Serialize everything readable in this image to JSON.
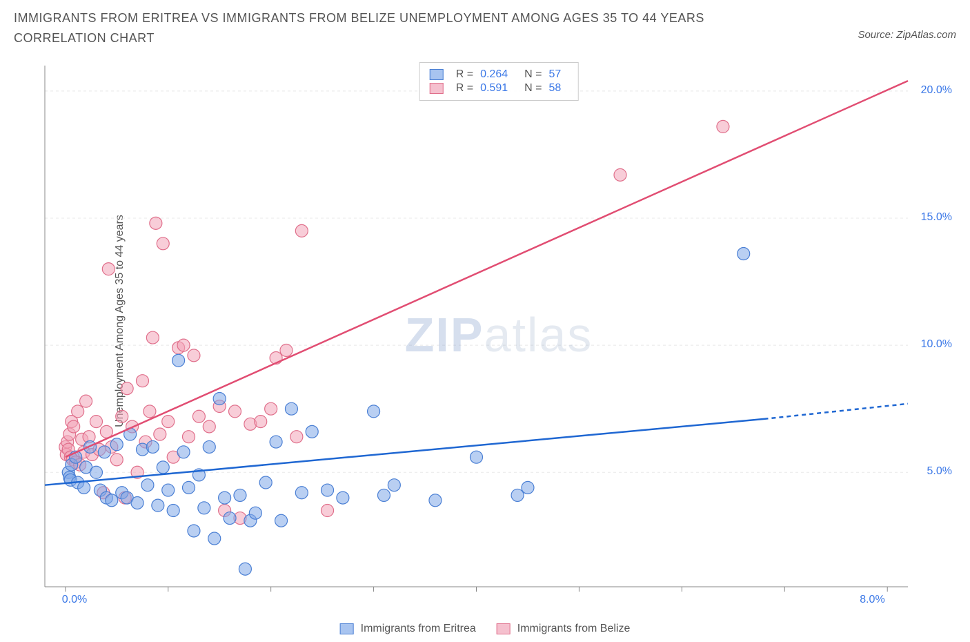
{
  "meta": {
    "title": "IMMIGRANTS FROM ERITREA VS IMMIGRANTS FROM BELIZE UNEMPLOYMENT AMONG AGES 35 TO 44 YEARS CORRELATION CHART",
    "source": "Source: ZipAtlas.com",
    "watermark_zip": "ZIP",
    "watermark_atlas": "atlas",
    "y_axis_label": "Unemployment Among Ages 35 to 44 years"
  },
  "chart": {
    "type": "scatter",
    "background_color": "#ffffff",
    "grid_color": "#e8e8e8",
    "axis_color": "#888888",
    "tick_color": "#888888",
    "tick_label_color": "#3b78e7",
    "xlim": [
      -0.2,
      8.2
    ],
    "ylim": [
      0.5,
      21.0
    ],
    "xticks": [
      0.0,
      8.0
    ],
    "xtick_labels": [
      "0.0%",
      "8.0%"
    ],
    "xtick_minor": [
      1.0,
      2.0,
      3.0,
      4.0,
      5.0,
      6.0,
      7.0
    ],
    "yticks": [
      5.0,
      10.0,
      15.0,
      20.0
    ],
    "ytick_labels": [
      "5.0%",
      "10.0%",
      "15.0%",
      "20.0%"
    ],
    "marker_radius": 9,
    "marker_opacity": 0.55,
    "series": [
      {
        "name": "Immigrants from Eritrea",
        "short": "eritrea",
        "marker_fill": "#7fa8e8",
        "marker_stroke": "#4a7fd4",
        "line_color": "#1f67d2",
        "line_width": 2.5,
        "trend_x": [
          -0.2,
          6.8,
          8.2
        ],
        "trend_y": [
          4.5,
          7.1,
          7.7
        ],
        "trend_dash_after": 6.8,
        "stats": {
          "R": "0.264",
          "N": "57"
        },
        "points": [
          [
            0.03,
            5.0
          ],
          [
            0.04,
            4.8
          ],
          [
            0.05,
            4.7
          ],
          [
            0.06,
            5.3
          ],
          [
            0.1,
            5.6
          ],
          [
            0.12,
            4.6
          ],
          [
            0.18,
            4.4
          ],
          [
            0.2,
            5.2
          ],
          [
            0.24,
            6.0
          ],
          [
            0.3,
            5.0
          ],
          [
            0.34,
            4.3
          ],
          [
            0.38,
            5.8
          ],
          [
            0.4,
            4.0
          ],
          [
            0.45,
            3.9
          ],
          [
            0.5,
            6.1
          ],
          [
            0.55,
            4.2
          ],
          [
            0.6,
            4.0
          ],
          [
            0.63,
            6.5
          ],
          [
            0.7,
            3.8
          ],
          [
            0.75,
            5.9
          ],
          [
            0.8,
            4.5
          ],
          [
            0.85,
            6.0
          ],
          [
            0.9,
            3.7
          ],
          [
            0.95,
            5.2
          ],
          [
            1.0,
            4.3
          ],
          [
            1.05,
            3.5
          ],
          [
            1.1,
            9.4
          ],
          [
            1.15,
            5.8
          ],
          [
            1.2,
            4.4
          ],
          [
            1.25,
            2.7
          ],
          [
            1.3,
            4.9
          ],
          [
            1.35,
            3.6
          ],
          [
            1.4,
            6.0
          ],
          [
            1.45,
            2.4
          ],
          [
            1.5,
            7.9
          ],
          [
            1.55,
            4.0
          ],
          [
            1.6,
            3.2
          ],
          [
            1.7,
            4.1
          ],
          [
            1.75,
            1.2
          ],
          [
            1.8,
            3.1
          ],
          [
            1.85,
            3.4
          ],
          [
            1.95,
            4.6
          ],
          [
            2.05,
            6.2
          ],
          [
            2.1,
            3.1
          ],
          [
            2.2,
            7.5
          ],
          [
            2.3,
            4.2
          ],
          [
            2.4,
            6.6
          ],
          [
            2.55,
            4.3
          ],
          [
            2.7,
            4.0
          ],
          [
            3.0,
            7.4
          ],
          [
            3.1,
            4.1
          ],
          [
            3.2,
            4.5
          ],
          [
            3.6,
            3.9
          ],
          [
            4.0,
            5.6
          ],
          [
            4.4,
            4.1
          ],
          [
            4.5,
            4.4
          ],
          [
            6.6,
            13.6
          ]
        ]
      },
      {
        "name": "Immigrants from Belize",
        "short": "belize",
        "marker_fill": "#f2a4b8",
        "marker_stroke": "#e06f8b",
        "line_color": "#e14d72",
        "line_width": 2.5,
        "trend_x": [
          0.0,
          8.2
        ],
        "trend_y": [
          5.6,
          20.4
        ],
        "stats": {
          "R": "0.591",
          "N": "58"
        },
        "points": [
          [
            0.0,
            6.0
          ],
          [
            0.01,
            5.7
          ],
          [
            0.02,
            6.2
          ],
          [
            0.03,
            5.9
          ],
          [
            0.04,
            6.5
          ],
          [
            0.05,
            5.6
          ],
          [
            0.06,
            7.0
          ],
          [
            0.07,
            5.5
          ],
          [
            0.08,
            6.8
          ],
          [
            0.1,
            5.4
          ],
          [
            0.12,
            7.4
          ],
          [
            0.14,
            5.3
          ],
          [
            0.16,
            6.3
          ],
          [
            0.18,
            5.8
          ],
          [
            0.2,
            7.8
          ],
          [
            0.23,
            6.4
          ],
          [
            0.26,
            5.7
          ],
          [
            0.3,
            7.0
          ],
          [
            0.33,
            5.9
          ],
          [
            0.37,
            4.2
          ],
          [
            0.4,
            6.6
          ],
          [
            0.42,
            13.0
          ],
          [
            0.45,
            6.0
          ],
          [
            0.5,
            5.5
          ],
          [
            0.55,
            7.2
          ],
          [
            0.58,
            4.0
          ],
          [
            0.6,
            8.3
          ],
          [
            0.65,
            6.8
          ],
          [
            0.7,
            5.0
          ],
          [
            0.75,
            8.6
          ],
          [
            0.78,
            6.2
          ],
          [
            0.82,
            7.4
          ],
          [
            0.85,
            10.3
          ],
          [
            0.88,
            14.8
          ],
          [
            0.92,
            6.5
          ],
          [
            0.95,
            14.0
          ],
          [
            1.0,
            7.0
          ],
          [
            1.05,
            5.6
          ],
          [
            1.1,
            9.9
          ],
          [
            1.15,
            10.0
          ],
          [
            1.2,
            6.4
          ],
          [
            1.25,
            9.6
          ],
          [
            1.3,
            7.2
          ],
          [
            1.4,
            6.8
          ],
          [
            1.5,
            7.6
          ],
          [
            1.55,
            3.5
          ],
          [
            1.65,
            7.4
          ],
          [
            1.7,
            3.2
          ],
          [
            1.8,
            6.9
          ],
          [
            1.9,
            7.0
          ],
          [
            2.0,
            7.5
          ],
          [
            2.05,
            9.5
          ],
          [
            2.15,
            9.8
          ],
          [
            2.25,
            6.4
          ],
          [
            2.3,
            14.5
          ],
          [
            2.55,
            3.5
          ],
          [
            5.4,
            16.7
          ],
          [
            6.4,
            18.6
          ]
        ]
      }
    ],
    "legend_bottom": [
      {
        "label": "Immigrants from Eritrea",
        "swatch_fill": "#a8c4f0",
        "swatch_stroke": "#4a7fd4"
      },
      {
        "label": "Immigrants from Belize",
        "swatch_fill": "#f5c0ce",
        "swatch_stroke": "#e06f8b"
      }
    ],
    "legend_top": [
      {
        "swatch_fill": "#a8c4f0",
        "swatch_stroke": "#4a7fd4",
        "R_label": "R =",
        "R": "0.264",
        "N_label": "N =",
        "N": "57"
      },
      {
        "swatch_fill": "#f5c0ce",
        "swatch_stroke": "#e06f8b",
        "R_label": "R =",
        "R": "0.591",
        "N_label": "N =",
        "N": "58"
      }
    ]
  }
}
